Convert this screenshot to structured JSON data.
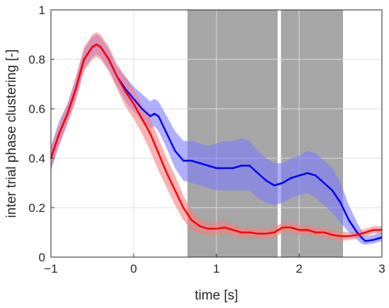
{
  "chart_data": {
    "type": "line",
    "xlabel": "time [s]",
    "ylabel": "inter trial phase clustering [-]",
    "xlim": [
      -1,
      3
    ],
    "ylim": [
      0,
      1
    ],
    "xticks": [
      -1,
      0,
      1,
      2,
      3
    ],
    "yticks": [
      0,
      0.2,
      0.4,
      0.6,
      0.8,
      1
    ],
    "xtick_labels": [
      "−1",
      "0",
      "1",
      "2",
      "3"
    ],
    "ytick_labels": [
      "0",
      "0.2",
      "0.4",
      "0.6",
      "0.8",
      "1"
    ],
    "grid": true,
    "shaded_regions": [
      {
        "x": [
          0.65,
          1.74
        ],
        "color": "#a6a6a6"
      },
      {
        "x": [
          1.78,
          2.53
        ],
        "color": "#a6a6a6"
      }
    ],
    "series": [
      {
        "color": "#0000ff",
        "band_color": "#7b7bff",
        "x": [
          -1.0,
          -0.9,
          -0.8,
          -0.7,
          -0.6,
          -0.5,
          -0.45,
          -0.4,
          -0.3,
          -0.2,
          -0.1,
          0.0,
          0.1,
          0.2,
          0.25,
          0.3,
          0.4,
          0.5,
          0.6,
          0.7,
          0.8,
          0.9,
          1.0,
          1.1,
          1.2,
          1.3,
          1.4,
          1.5,
          1.6,
          1.7,
          1.8,
          1.9,
          2.0,
          2.1,
          2.2,
          2.3,
          2.4,
          2.5,
          2.6,
          2.7,
          2.75,
          2.8,
          2.9,
          3.0
        ],
        "y": [
          0.4,
          0.5,
          0.58,
          0.68,
          0.8,
          0.85,
          0.86,
          0.85,
          0.8,
          0.73,
          0.68,
          0.64,
          0.6,
          0.57,
          0.58,
          0.57,
          0.5,
          0.43,
          0.39,
          0.39,
          0.38,
          0.37,
          0.36,
          0.36,
          0.36,
          0.37,
          0.37,
          0.34,
          0.31,
          0.29,
          0.3,
          0.32,
          0.33,
          0.34,
          0.33,
          0.3,
          0.27,
          0.22,
          0.15,
          0.1,
          0.08,
          0.065,
          0.07,
          0.08
        ],
        "lower": [
          0.35,
          0.45,
          0.54,
          0.64,
          0.76,
          0.81,
          0.82,
          0.81,
          0.76,
          0.69,
          0.63,
          0.59,
          0.55,
          0.52,
          0.53,
          0.51,
          0.44,
          0.36,
          0.31,
          0.3,
          0.29,
          0.28,
          0.27,
          0.27,
          0.27,
          0.27,
          0.27,
          0.24,
          0.22,
          0.21,
          0.22,
          0.24,
          0.25,
          0.26,
          0.24,
          0.21,
          0.18,
          0.14,
          0.1,
          0.07,
          0.055,
          0.05,
          0.055,
          0.065
        ],
        "upper": [
          0.45,
          0.55,
          0.62,
          0.72,
          0.84,
          0.89,
          0.9,
          0.89,
          0.84,
          0.77,
          0.73,
          0.69,
          0.66,
          0.63,
          0.64,
          0.63,
          0.57,
          0.51,
          0.47,
          0.47,
          0.46,
          0.45,
          0.46,
          0.47,
          0.47,
          0.48,
          0.47,
          0.43,
          0.4,
          0.38,
          0.38,
          0.4,
          0.41,
          0.43,
          0.42,
          0.39,
          0.36,
          0.3,
          0.21,
          0.14,
          0.11,
          0.085,
          0.09,
          0.1
        ]
      },
      {
        "color": "#ff0000",
        "band_color": "#f77f7f",
        "x": [
          -1.0,
          -0.9,
          -0.8,
          -0.7,
          -0.6,
          -0.5,
          -0.45,
          -0.4,
          -0.3,
          -0.2,
          -0.1,
          0.0,
          0.1,
          0.2,
          0.3,
          0.4,
          0.5,
          0.6,
          0.7,
          0.8,
          0.9,
          1.0,
          1.1,
          1.2,
          1.3,
          1.4,
          1.5,
          1.6,
          1.7,
          1.8,
          1.9,
          2.0,
          2.1,
          2.2,
          2.3,
          2.4,
          2.5,
          2.6,
          2.7,
          2.8,
          2.9,
          3.0
        ],
        "y": [
          0.4,
          0.5,
          0.58,
          0.68,
          0.8,
          0.85,
          0.86,
          0.85,
          0.8,
          0.73,
          0.67,
          0.62,
          0.56,
          0.5,
          0.42,
          0.34,
          0.27,
          0.2,
          0.15,
          0.125,
          0.115,
          0.115,
          0.12,
          0.11,
          0.1,
          0.1,
          0.095,
          0.095,
          0.1,
          0.12,
          0.12,
          0.11,
          0.11,
          0.1,
          0.1,
          0.09,
          0.085,
          0.085,
          0.09,
          0.1,
          0.11,
          0.11
        ],
        "lower": [
          0.36,
          0.46,
          0.54,
          0.63,
          0.75,
          0.8,
          0.81,
          0.8,
          0.75,
          0.68,
          0.61,
          0.56,
          0.5,
          0.43,
          0.35,
          0.28,
          0.21,
          0.15,
          0.11,
          0.095,
          0.09,
          0.09,
          0.095,
          0.085,
          0.08,
          0.08,
          0.075,
          0.075,
          0.08,
          0.1,
          0.1,
          0.09,
          0.09,
          0.085,
          0.08,
          0.07,
          0.065,
          0.07,
          0.075,
          0.085,
          0.095,
          0.095
        ],
        "upper": [
          0.44,
          0.54,
          0.62,
          0.73,
          0.85,
          0.9,
          0.91,
          0.9,
          0.85,
          0.78,
          0.73,
          0.68,
          0.62,
          0.56,
          0.48,
          0.4,
          0.33,
          0.25,
          0.19,
          0.155,
          0.14,
          0.14,
          0.145,
          0.135,
          0.12,
          0.12,
          0.115,
          0.115,
          0.12,
          0.14,
          0.14,
          0.13,
          0.13,
          0.12,
          0.12,
          0.11,
          0.105,
          0.1,
          0.105,
          0.115,
          0.125,
          0.125
        ]
      }
    ]
  }
}
